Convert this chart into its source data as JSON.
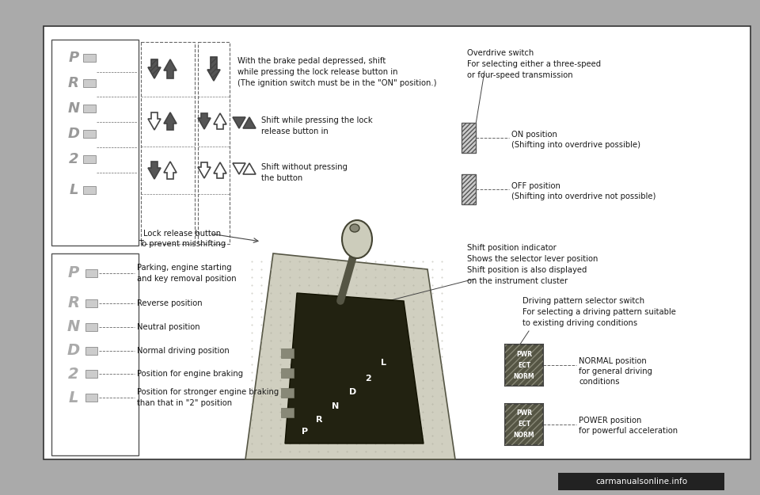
{
  "bg_color": "#ffffff",
  "outer_bg": "#aaaaaa",
  "text_color": "#1a1a1a",
  "annotations": {
    "overdrive_switch": "Overdrive switch\nFor selecting either a three-speed\nor four-speed transmission",
    "on_position": "ON position\n(Shifting into overdrive possible)",
    "off_position": "OFF position\n(Shifting into overdrive not possible)",
    "shift_indicator": "Shift position indicator\nShows the selector lever position\nShift position is also displayed\non the instrument cluster",
    "driving_pattern": "Driving pattern selector switch\nFor selecting a driving pattern suitable\nto existing driving conditions",
    "normal_pos": "NORMAL position\nfor general driving\nconditions",
    "power_pos": "POWER position\nfor powerful acceleration",
    "brake_text": "With the brake pedal depressed, shift\nwhile pressing the lock release button in\n(The ignition switch must be in the \"ON\" position.)",
    "lock_text": "Shift while pressing the lock\nrelease button in",
    "no_press_text": "Shift without pressing\nthe button",
    "lock_button_text": "Lock release button\nTo prevent misshifting",
    "parking_text": "Parking, engine starting\nand key removal position",
    "reverse_text": "Reverse position",
    "neutral_text": "Neutral position",
    "normal_drive_text": "Normal driving position",
    "engine_brake_text": "Position for engine braking",
    "stronger_brake_text": "Position for stronger engine braking\nthan that in \"2\" position"
  },
  "watermark": "carmanualsonline.info",
  "gear_labels_top": [
    "P",
    "R",
    "N",
    "D",
    "2",
    "L"
  ],
  "gear_labels_bottom": [
    "P",
    "R",
    "N",
    "D",
    "2",
    "L"
  ],
  "pwr_ect_labels": [
    "PWR",
    "ECT",
    "NORM"
  ]
}
